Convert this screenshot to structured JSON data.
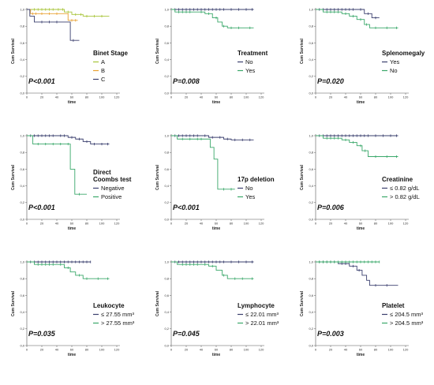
{
  "figure": {
    "ylabel": "Cum Survival",
    "xlabel": "time"
  },
  "colors": {
    "green_light": "#a7c438",
    "orange": "#e8a030",
    "navy": "#3a3f6e",
    "green": "#3aa86a"
  },
  "chart_data": [
    {
      "type": "line",
      "subtype": "kaplan-meier",
      "legend_title": "Binet Stage",
      "p_value": "P<0.001",
      "xlim": [
        0,
        120
      ],
      "ylim": [
        0,
        1.0
      ],
      "xticks": [
        "0",
        "20",
        "40",
        "60",
        "80",
        "100",
        "120"
      ],
      "yticks": [
        "0,0",
        "0,2",
        "0,4",
        "0,6",
        "0,8",
        "1,0"
      ],
      "series": [
        {
          "name": "A",
          "color": "#a7c438",
          "x": [
            0,
            40,
            50,
            60,
            70,
            75,
            110
          ],
          "y": [
            1.0,
            1.0,
            0.97,
            0.94,
            0.94,
            0.92,
            0.92
          ],
          "censor": [
            10,
            15,
            20,
            25,
            30,
            35,
            42,
            48,
            55,
            65,
            72,
            80,
            90,
            100
          ]
        },
        {
          "name": "B",
          "color": "#e8a030",
          "x": [
            0,
            5,
            50,
            55,
            68
          ],
          "y": [
            1.0,
            0.95,
            0.95,
            0.87,
            0.87
          ],
          "censor": [
            8,
            12,
            20,
            30,
            40,
            60,
            65
          ]
        },
        {
          "name": "C",
          "color": "#3a3f6e",
          "x": [
            0,
            4,
            10,
            50,
            58,
            70
          ],
          "y": [
            1.0,
            0.92,
            0.85,
            0.85,
            0.63,
            0.63
          ],
          "censor": [
            20,
            30,
            40,
            62
          ]
        }
      ]
    },
    {
      "type": "line",
      "subtype": "kaplan-meier",
      "legend_title": "Treatment",
      "p_value": "P=0.008",
      "xlim": [
        0,
        120
      ],
      "ylim": [
        0,
        1.0
      ],
      "xticks": [
        "0",
        "20",
        "40",
        "60",
        "80",
        "100",
        "120"
      ],
      "yticks": [
        "0,0",
        "0,2",
        "0,4",
        "0,6",
        "0,8",
        "1,0"
      ],
      "series": [
        {
          "name": "No",
          "color": "#3a3f6e",
          "x": [
            0,
            110
          ],
          "y": [
            1.0,
            1.0
          ],
          "censor": [
            5,
            10,
            15,
            20,
            25,
            30,
            35,
            40,
            45,
            50,
            55,
            60,
            65,
            70,
            80,
            90,
            100,
            108
          ]
        },
        {
          "name": "Yes",
          "color": "#3aa86a",
          "x": [
            0,
            5,
            30,
            45,
            55,
            62,
            68,
            75,
            110
          ],
          "y": [
            1.0,
            0.97,
            0.97,
            0.95,
            0.9,
            0.85,
            0.8,
            0.78,
            0.78
          ],
          "censor": [
            10,
            15,
            20,
            25,
            40,
            50,
            60,
            70,
            80,
            90,
            105
          ]
        }
      ]
    },
    {
      "type": "line",
      "subtype": "kaplan-meier",
      "legend_title": "Splenomegaly",
      "p_value": "P=0.020",
      "xlim": [
        0,
        120
      ],
      "ylim": [
        0,
        1.0
      ],
      "xticks": [
        "0",
        "20",
        "40",
        "60",
        "80",
        "100",
        "120"
      ],
      "yticks": [
        "0,0",
        "0,2",
        "0,4",
        "0,6",
        "0,8",
        "1,0"
      ],
      "series": [
        {
          "name": "Yes",
          "color": "#3a3f6e",
          "x": [
            0,
            55,
            65,
            75,
            85
          ],
          "y": [
            1.0,
            1.0,
            0.95,
            0.9,
            0.9
          ],
          "censor": [
            5,
            10,
            15,
            20,
            25,
            30,
            35,
            40,
            45,
            50,
            60,
            70,
            80
          ]
        },
        {
          "name": "No",
          "color": "#3aa86a",
          "x": [
            0,
            10,
            35,
            45,
            55,
            65,
            72,
            110
          ],
          "y": [
            1.0,
            0.97,
            0.95,
            0.92,
            0.88,
            0.82,
            0.78,
            0.78
          ],
          "censor": [
            15,
            20,
            25,
            30,
            40,
            50,
            60,
            68,
            80,
            95,
            108
          ]
        }
      ]
    },
    {
      "type": "line",
      "subtype": "kaplan-meier",
      "legend_title": "Direct\nCoombs test",
      "p_value": "P<0.001",
      "xlim": [
        0,
        120
      ],
      "ylim": [
        0,
        1.0
      ],
      "xticks": [
        "0",
        "20",
        "40",
        "60",
        "80",
        "100",
        "120"
      ],
      "yticks": [
        "0,0",
        "0,2",
        "0,4",
        "0,6",
        "0,8",
        "1,0"
      ],
      "series": [
        {
          "name": "Negative",
          "color": "#3a3f6e",
          "x": [
            0,
            40,
            55,
            65,
            75,
            85,
            110
          ],
          "y": [
            1.0,
            1.0,
            0.98,
            0.96,
            0.93,
            0.9,
            0.9
          ],
          "censor": [
            5,
            10,
            15,
            20,
            25,
            30,
            35,
            45,
            50,
            60,
            70,
            80,
            90,
            100,
            108
          ]
        },
        {
          "name": "Positive",
          "color": "#3aa86a",
          "x": [
            0,
            8,
            50,
            58,
            64,
            80
          ],
          "y": [
            1.0,
            0.9,
            0.9,
            0.6,
            0.3,
            0.3
          ],
          "censor": [
            15,
            25,
            35,
            45,
            55,
            70
          ]
        }
      ]
    },
    {
      "type": "line",
      "subtype": "kaplan-meier",
      "legend_title": "17p deletion",
      "p_value": "P<0.001",
      "xlim": [
        0,
        120
      ],
      "ylim": [
        0,
        1.0
      ],
      "xticks": [
        "0",
        "20",
        "40",
        "60",
        "80",
        "100",
        "120"
      ],
      "yticks": [
        "0,0",
        "0,2",
        "0,4",
        "0,6",
        "0,8",
        "1,0"
      ],
      "series": [
        {
          "name": "No",
          "color": "#3a3f6e",
          "x": [
            0,
            40,
            50,
            60,
            70,
            80,
            110
          ],
          "y": [
            1.0,
            1.0,
            0.98,
            0.98,
            0.96,
            0.95,
            0.95
          ],
          "censor": [
            5,
            10,
            15,
            20,
            25,
            30,
            35,
            45,
            55,
            65,
            75,
            85,
            95,
            105
          ]
        },
        {
          "name": "Yes",
          "color": "#3aa86a",
          "x": [
            0,
            8,
            45,
            52,
            57,
            62,
            85
          ],
          "y": [
            1.0,
            0.96,
            0.96,
            0.86,
            0.72,
            0.36,
            0.36
          ],
          "censor": [
            15,
            25,
            35,
            40,
            70,
            80
          ]
        }
      ]
    },
    {
      "type": "line",
      "subtype": "kaplan-meier",
      "legend_title": "Creatinine",
      "p_value": "P=0.006",
      "xlim": [
        0,
        120
      ],
      "ylim": [
        0,
        1.0
      ],
      "xticks": [
        "0",
        "20",
        "40",
        "60",
        "80",
        "100",
        "120"
      ],
      "yticks": [
        "0,0",
        "0,2",
        "0,4",
        "0,6",
        "0,8",
        "1,0"
      ],
      "series": [
        {
          "name": "≤ 0.82 g/dL",
          "color": "#3a3f6e",
          "x": [
            0,
            110
          ],
          "y": [
            1.0,
            1.0
          ],
          "censor": [
            5,
            10,
            15,
            20,
            25,
            30,
            35,
            40,
            45,
            50,
            55,
            60,
            65,
            70,
            80,
            90,
            100,
            108
          ]
        },
        {
          "name": "> 0.82 g/dL",
          "color": "#3aa86a",
          "x": [
            0,
            10,
            35,
            45,
            55,
            62,
            70,
            110
          ],
          "y": [
            1.0,
            0.97,
            0.95,
            0.92,
            0.88,
            0.82,
            0.75,
            0.75
          ],
          "censor": [
            15,
            20,
            25,
            30,
            40,
            50,
            60,
            66,
            80,
            95,
            108
          ]
        }
      ]
    },
    {
      "type": "line",
      "subtype": "kaplan-meier",
      "legend_title": "Leukocyte",
      "p_value": "P=0.035",
      "xlim": [
        0,
        120
      ],
      "ylim": [
        0,
        1.0
      ],
      "xticks": [
        "0",
        "20",
        "40",
        "60",
        "80",
        "100",
        "120"
      ],
      "yticks": [
        "0,0",
        "0,2",
        "0,4",
        "0,6",
        "0,8",
        "1,0"
      ],
      "series": [
        {
          "name": "≤ 27.55 mm³",
          "color": "#3a3f6e",
          "x": [
            0,
            85
          ],
          "y": [
            1.0,
            1.0
          ],
          "censor": [
            5,
            10,
            15,
            20,
            25,
            30,
            35,
            40,
            45,
            50,
            55,
            60,
            65,
            70,
            75,
            80,
            85
          ]
        },
        {
          "name": "> 27.55 mm³",
          "color": "#3aa86a",
          "x": [
            0,
            10,
            40,
            50,
            58,
            65,
            75,
            110
          ],
          "y": [
            1.0,
            0.97,
            0.97,
            0.93,
            0.88,
            0.84,
            0.8,
            0.8
          ],
          "censor": [
            15,
            20,
            25,
            30,
            35,
            45,
            55,
            70,
            80,
            95,
            108
          ]
        }
      ]
    },
    {
      "type": "line",
      "subtype": "kaplan-meier",
      "legend_title": "Lymphocyte",
      "p_value": "P=0.045",
      "xlim": [
        0,
        120
      ],
      "ylim": [
        0,
        1.0
      ],
      "xticks": [
        "0",
        "20",
        "40",
        "60",
        "80",
        "100",
        "120"
      ],
      "yticks": [
        "0,0",
        "0,2",
        "0,4",
        "0,6",
        "0,8",
        "1,0"
      ],
      "series": [
        {
          "name": "≤ 22.01 mm³",
          "color": "#3a3f6e",
          "x": [
            0,
            110
          ],
          "y": [
            1.0,
            1.0
          ],
          "censor": [
            5,
            10,
            15,
            20,
            25,
            30,
            35,
            40,
            45,
            50,
            55,
            60,
            65,
            70,
            80,
            90,
            100,
            108
          ]
        },
        {
          "name": "> 22.01 mm³",
          "color": "#3aa86a",
          "x": [
            0,
            8,
            40,
            50,
            60,
            68,
            75,
            110
          ],
          "y": [
            1.0,
            0.97,
            0.97,
            0.95,
            0.9,
            0.84,
            0.8,
            0.8
          ],
          "censor": [
            15,
            20,
            25,
            30,
            35,
            45,
            55,
            70,
            85,
            95,
            108
          ]
        }
      ]
    },
    {
      "type": "line",
      "subtype": "kaplan-meier",
      "legend_title": "Platelet",
      "p_value": "P=0.003",
      "xlim": [
        0,
        120
      ],
      "ylim": [
        0,
        1.0
      ],
      "xticks": [
        "0",
        "20",
        "40",
        "60",
        "80",
        "100",
        "120"
      ],
      "yticks": [
        "0,0",
        "0,2",
        "0,4",
        "0,6",
        "0,8",
        "1,0"
      ],
      "series": [
        {
          "name": "≤ 204.5 mm³",
          "color": "#3a3f6e",
          "x": [
            0,
            30,
            45,
            55,
            62,
            68,
            72,
            110
          ],
          "y": [
            1.0,
            0.98,
            0.95,
            0.9,
            0.84,
            0.78,
            0.72,
            0.72
          ],
          "censor": [
            5,
            10,
            15,
            20,
            25,
            35,
            40,
            50,
            58,
            80,
            95
          ]
        },
        {
          "name": "> 204.5 mm³",
          "color": "#3aa86a",
          "x": [
            0,
            85
          ],
          "y": [
            1.0,
            1.0
          ],
          "censor": [
            5,
            10,
            15,
            20,
            25,
            30,
            35,
            40,
            45,
            50,
            55,
            60,
            65,
            70,
            75,
            80,
            85
          ]
        }
      ]
    }
  ]
}
